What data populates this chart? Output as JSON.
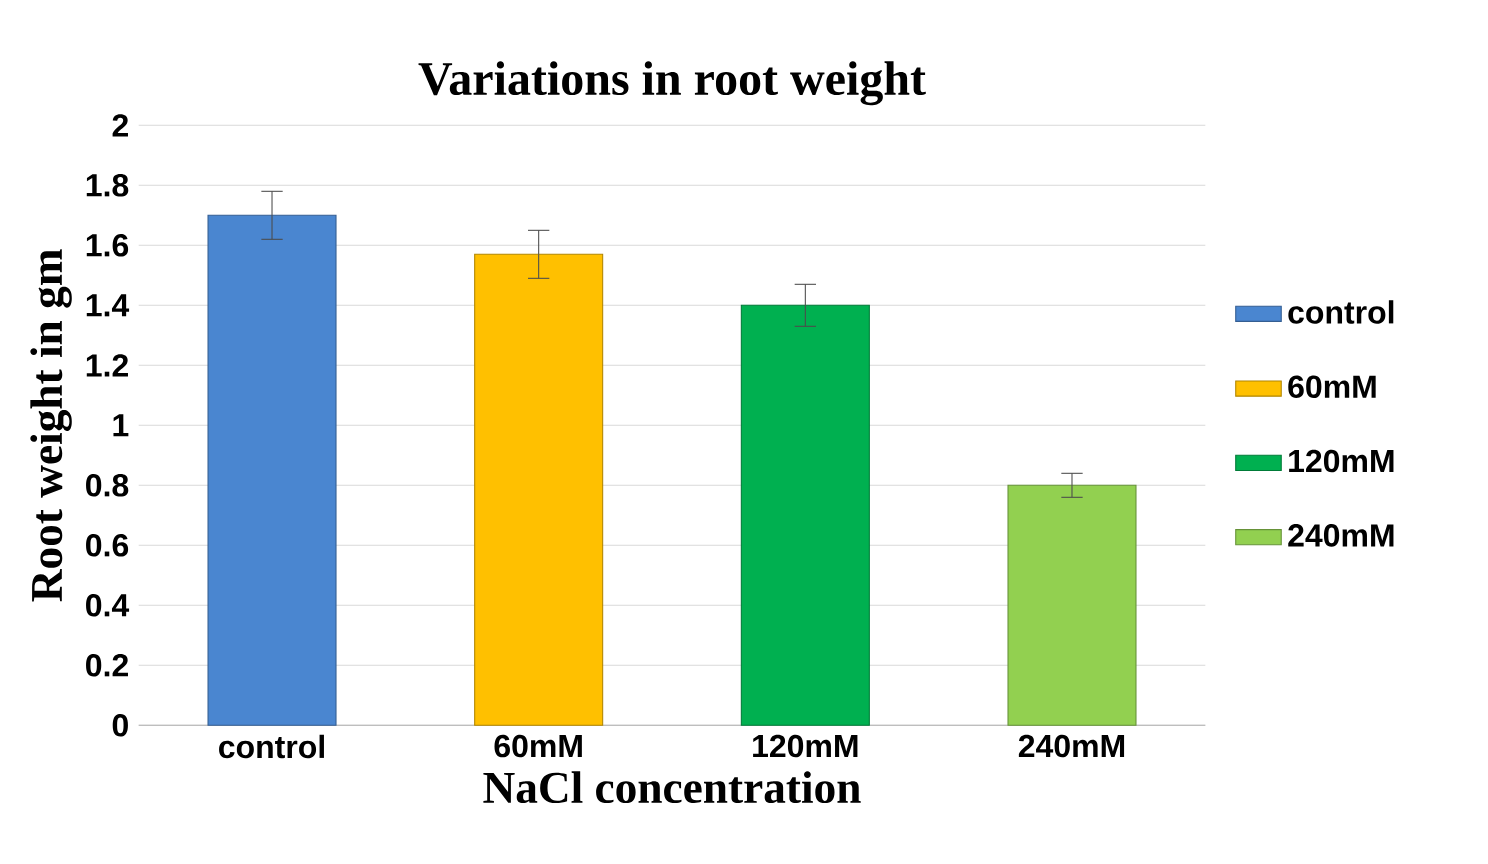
{
  "chart_data": {
    "type": "bar",
    "title": "Variations in root weight",
    "xlabel": "NaCl concentration",
    "ylabel": "Root weight in gm",
    "categories": [
      "control",
      "60mM",
      "120mM",
      "240mM"
    ],
    "series": [
      {
        "name": "control",
        "color": "#4a86d0",
        "values": [
          1.7,
          null,
          null,
          null
        ],
        "errors": [
          0.08,
          null,
          null,
          null
        ]
      },
      {
        "name": "60mM",
        "color": "#ffc000",
        "values": [
          null,
          1.57,
          null,
          null
        ],
        "errors": [
          null,
          0.08,
          null,
          null
        ]
      },
      {
        "name": "120mM",
        "color": "#00b050",
        "values": [
          null,
          null,
          1.4,
          null
        ],
        "errors": [
          null,
          null,
          0.07,
          null
        ]
      },
      {
        "name": "240mM",
        "color": "#92d050",
        "values": [
          null,
          null,
          null,
          0.8
        ],
        "errors": [
          null,
          null,
          null,
          0.04
        ]
      }
    ],
    "ylim": [
      0,
      2
    ],
    "yticks": [
      0,
      0.2,
      0.4,
      0.6,
      0.8,
      1,
      1.2,
      1.4,
      1.6,
      1.8,
      2
    ],
    "grid": "y",
    "legend": "right"
  }
}
